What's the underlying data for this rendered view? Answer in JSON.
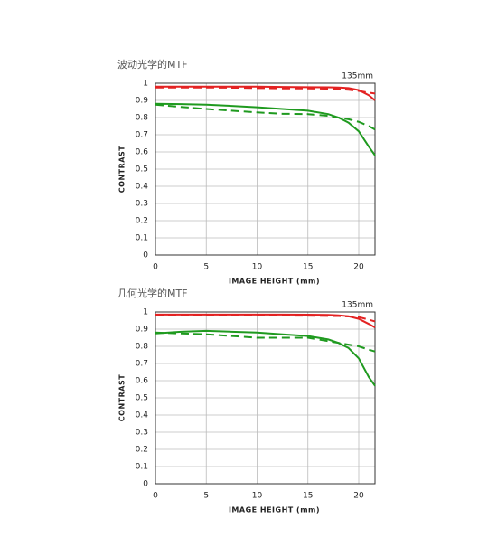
{
  "chart_data": [
    {
      "type": "line",
      "title": "波动光学的MTF",
      "annotation": "135mm",
      "ylabel": "CONTRAST",
      "xlabel": "IMAGE HEIGHT (mm)",
      "x": [
        0,
        2.5,
        5,
        7.5,
        10,
        12.5,
        15,
        17,
        18,
        19,
        20,
        21,
        21.6
      ],
      "xlim": [
        0,
        21.6
      ],
      "xticks": [
        0,
        5,
        10,
        15,
        20
      ],
      "ylim": [
        0,
        1
      ],
      "yticks": [
        0,
        0.1,
        0.2,
        0.3,
        0.4,
        0.5,
        0.6,
        0.7,
        0.8,
        0.9,
        1
      ],
      "grid": true,
      "series": [
        {
          "color": "#e32222",
          "dashed": false,
          "values": [
            0.98,
            0.98,
            0.98,
            0.98,
            0.98,
            0.978,
            0.977,
            0.976,
            0.975,
            0.972,
            0.96,
            0.93,
            0.9
          ]
        },
        {
          "color": "#e32222",
          "dashed": true,
          "values": [
            0.975,
            0.975,
            0.975,
            0.974,
            0.972,
            0.97,
            0.97,
            0.968,
            0.966,
            0.962,
            0.955,
            0.945,
            0.94
          ]
        },
        {
          "color": "#1f9a1f",
          "dashed": false,
          "values": [
            0.88,
            0.878,
            0.875,
            0.868,
            0.86,
            0.85,
            0.84,
            0.82,
            0.8,
            0.77,
            0.72,
            0.63,
            0.58
          ]
        },
        {
          "color": "#1f9a1f",
          "dashed": true,
          "values": [
            0.875,
            0.862,
            0.85,
            0.84,
            0.83,
            0.822,
            0.82,
            0.81,
            0.8,
            0.79,
            0.775,
            0.75,
            0.73
          ]
        }
      ]
    },
    {
      "type": "line",
      "title": "几何光学的MTF",
      "annotation": "135mm",
      "ylabel": "CONTRAST",
      "xlabel": "IMAGE HEIGHT (mm)",
      "x": [
        0,
        2.5,
        5,
        7.5,
        10,
        12.5,
        15,
        17,
        18,
        19,
        20,
        21,
        21.6
      ],
      "xlim": [
        0,
        21.6
      ],
      "xticks": [
        0,
        5,
        10,
        15,
        20
      ],
      "ylim": [
        0,
        1
      ],
      "yticks": [
        0,
        0.1,
        0.2,
        0.3,
        0.4,
        0.5,
        0.6,
        0.7,
        0.8,
        0.9,
        1
      ],
      "grid": true,
      "series": [
        {
          "color": "#e32222",
          "dashed": false,
          "values": [
            0.985,
            0.985,
            0.985,
            0.985,
            0.985,
            0.985,
            0.984,
            0.983,
            0.98,
            0.975,
            0.96,
            0.93,
            0.91
          ]
        },
        {
          "color": "#e32222",
          "dashed": true,
          "values": [
            0.98,
            0.98,
            0.98,
            0.98,
            0.98,
            0.979,
            0.978,
            0.977,
            0.976,
            0.974,
            0.97,
            0.955,
            0.945
          ]
        },
        {
          "color": "#1f9a1f",
          "dashed": false,
          "values": [
            0.875,
            0.885,
            0.89,
            0.885,
            0.88,
            0.87,
            0.86,
            0.84,
            0.82,
            0.79,
            0.73,
            0.62,
            0.57
          ]
        },
        {
          "color": "#1f9a1f",
          "dashed": true,
          "values": [
            0.88,
            0.875,
            0.87,
            0.86,
            0.85,
            0.85,
            0.85,
            0.83,
            0.82,
            0.81,
            0.8,
            0.78,
            0.77
          ]
        }
      ]
    }
  ]
}
